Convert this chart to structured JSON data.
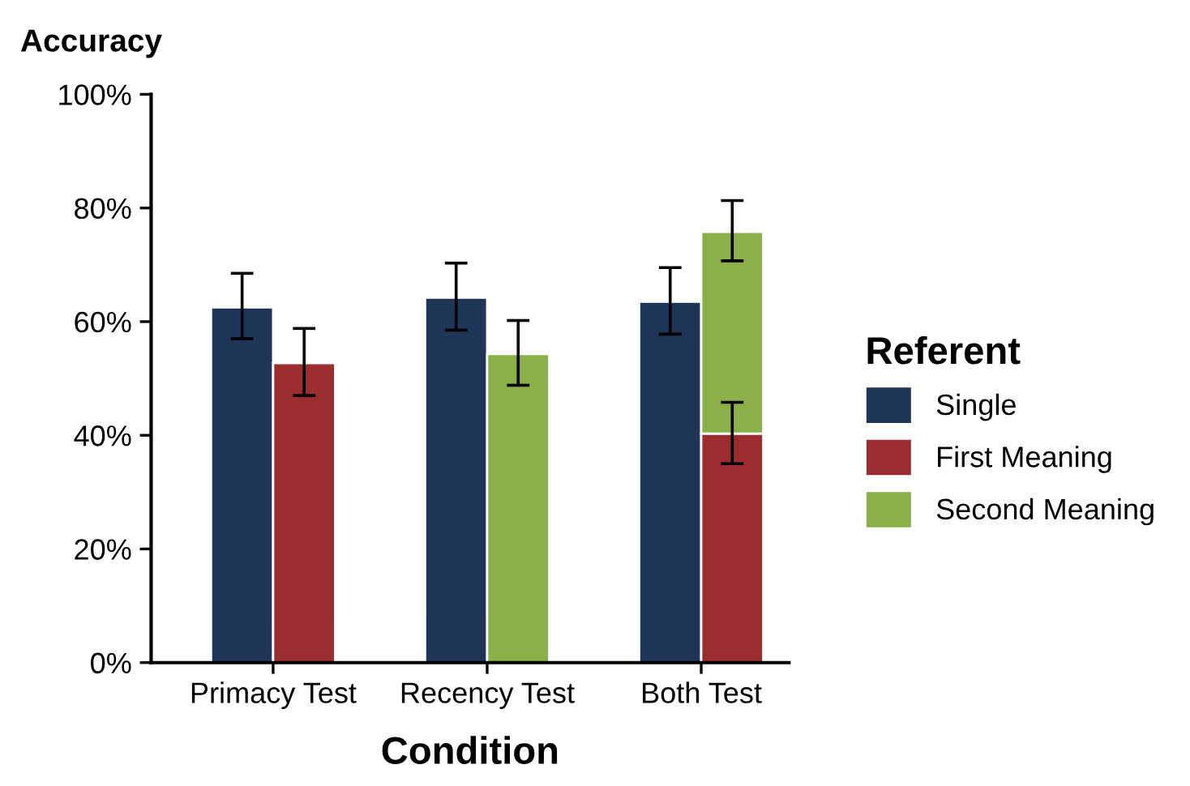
{
  "chart_data": {
    "type": "bar",
    "xlabel": "Condition",
    "ylabel": "Accuracy",
    "legend_title": "Referent",
    "legend": "right",
    "categories": [
      "Primacy Test",
      "Recency Test",
      "Both Test"
    ],
    "series": [
      {
        "name": "Single",
        "color": "#1f3557",
        "values": [
          62.5,
          64.2,
          63.5
        ],
        "errors": [
          [
            57.0,
            68.5
          ],
          [
            58.5,
            70.3
          ],
          [
            57.8,
            69.5
          ]
        ]
      },
      {
        "name": "First Meaning",
        "color": "#9b2c2f",
        "values": [
          52.7,
          null,
          40.3
        ],
        "base": [
          0,
          null,
          0
        ],
        "errors": [
          [
            47.0,
            58.8
          ],
          null,
          [
            35.0,
            45.8
          ]
        ]
      },
      {
        "name": "Second Meaning",
        "color": "#8bb04a",
        "values": [
          null,
          54.3,
          35.5
        ],
        "base": [
          null,
          0,
          40.3
        ],
        "errors": [
          null,
          [
            48.8,
            60.2
          ],
          [
            70.7,
            81.3
          ]
        ]
      }
    ],
    "ylim": [
      0,
      100
    ],
    "yticks": [
      {
        "value": 0,
        "label": "0%"
      },
      {
        "value": 20,
        "label": "20%"
      },
      {
        "value": 40,
        "label": "40%"
      },
      {
        "value": 60,
        "label": "60%"
      },
      {
        "value": 80,
        "label": "80%"
      },
      {
        "value": 100,
        "label": "100%"
      }
    ],
    "grid": false
  }
}
